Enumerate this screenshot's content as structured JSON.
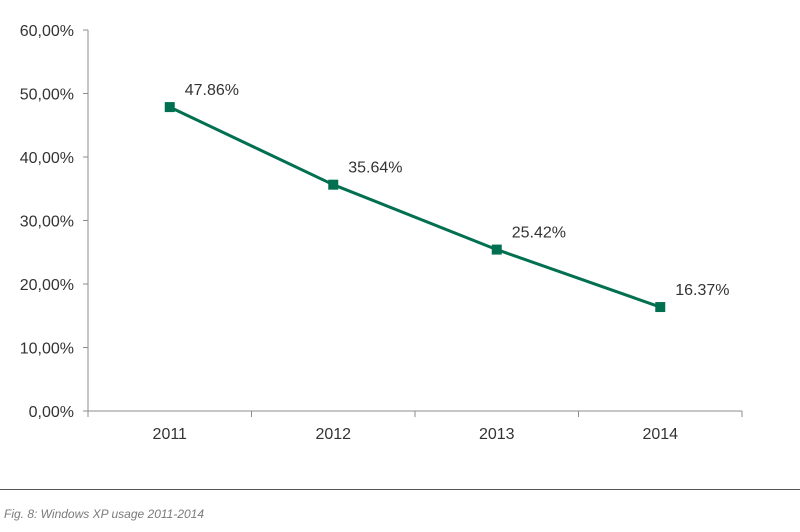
{
  "chart_data": {
    "type": "line",
    "categories": [
      "2011",
      "2012",
      "2013",
      "2014"
    ],
    "series": [
      {
        "values": [
          47.86,
          35.64,
          25.42,
          16.37
        ],
        "labels": [
          "47.86%",
          "35.64%",
          "25.42%",
          "16.37%"
        ],
        "color": "#007050",
        "marker": "square"
      }
    ],
    "y_ticks": [
      0,
      10,
      20,
      30,
      40,
      50,
      60
    ],
    "y_tick_labels": [
      "0,00%",
      "10,00%",
      "20,00%",
      "30,00%",
      "40,00%",
      "50,00%",
      "60,00%"
    ],
    "ylim": [
      0,
      60
    ],
    "grid": false,
    "legend": "none"
  },
  "caption": "Fig. 8: Windows XP usage 2011-2014"
}
